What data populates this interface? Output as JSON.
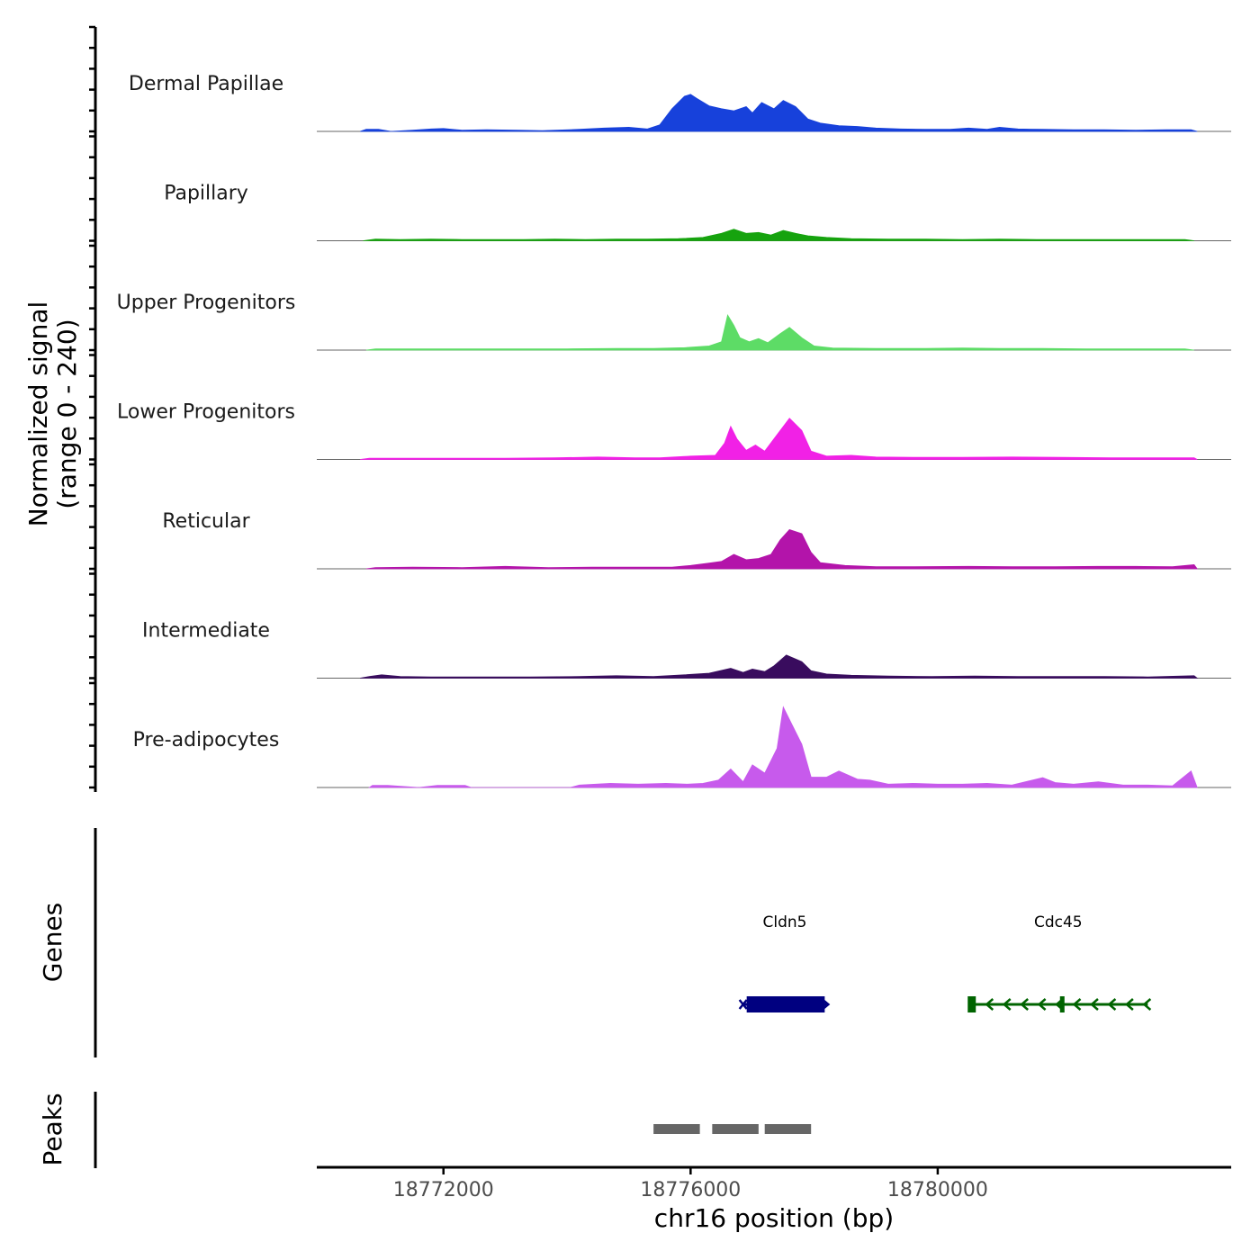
{
  "chart_data": {
    "type": "area",
    "ylabel_line1": "Normalized signal",
    "ylabel_line2": "(range 0 - 240)",
    "ylim": [
      0,
      240
    ],
    "xlabel": "chr16 position (bp)",
    "xlim": [
      18769950,
      18784750
    ],
    "x_ticks": [
      18772000,
      18776000,
      18780000
    ],
    "x_tick_labels": [
      "18772000",
      "18776000",
      "18780000"
    ],
    "track_panel_label_genes": "Genes",
    "track_panel_label_peaks": "Peaks",
    "series": [
      {
        "name": "Dermal Papillae",
        "color": "#1741db",
        "points": [
          [
            18770650,
            0
          ],
          [
            18770750,
            5
          ],
          [
            18770950,
            5
          ],
          [
            18771150,
            0
          ],
          [
            18771500,
            3
          ],
          [
            18771800,
            6
          ],
          [
            18772000,
            7
          ],
          [
            18772300,
            3
          ],
          [
            18772700,
            4
          ],
          [
            18773200,
            3
          ],
          [
            18773600,
            2
          ],
          [
            18774200,
            5
          ],
          [
            18774600,
            8
          ],
          [
            18775000,
            10
          ],
          [
            18775300,
            6
          ],
          [
            18775500,
            16
          ],
          [
            18775700,
            55
          ],
          [
            18775900,
            85
          ],
          [
            18776000,
            90
          ],
          [
            18776100,
            80
          ],
          [
            18776300,
            62
          ],
          [
            18776500,
            55
          ],
          [
            18776700,
            50
          ],
          [
            18776900,
            60
          ],
          [
            18777000,
            45
          ],
          [
            18777150,
            70
          ],
          [
            18777350,
            55
          ],
          [
            18777500,
            75
          ],
          [
            18777700,
            60
          ],
          [
            18777900,
            30
          ],
          [
            18778100,
            20
          ],
          [
            18778400,
            14
          ],
          [
            18778700,
            12
          ],
          [
            18779000,
            8
          ],
          [
            18779400,
            6
          ],
          [
            18779800,
            5
          ],
          [
            18780200,
            5
          ],
          [
            18780500,
            8
          ],
          [
            18780800,
            5
          ],
          [
            18781000,
            10
          ],
          [
            18781300,
            6
          ],
          [
            18781700,
            5
          ],
          [
            18782200,
            4
          ],
          [
            18782700,
            4
          ],
          [
            18783200,
            3
          ],
          [
            18783700,
            4
          ],
          [
            18784100,
            4
          ],
          [
            18784200,
            0
          ]
        ]
      },
      {
        "name": "Papillary",
        "color": "#16a30e",
        "points": [
          [
            18770700,
            0
          ],
          [
            18770900,
            4
          ],
          [
            18771300,
            3
          ],
          [
            18771800,
            4
          ],
          [
            18772300,
            3
          ],
          [
            18772800,
            3
          ],
          [
            18773300,
            3
          ],
          [
            18773800,
            4
          ],
          [
            18774300,
            3
          ],
          [
            18774800,
            4
          ],
          [
            18775300,
            4
          ],
          [
            18775800,
            5
          ],
          [
            18776200,
            8
          ],
          [
            18776500,
            18
          ],
          [
            18776700,
            28
          ],
          [
            18776900,
            18
          ],
          [
            18777100,
            20
          ],
          [
            18777300,
            14
          ],
          [
            18777500,
            25
          ],
          [
            18777700,
            18
          ],
          [
            18777900,
            12
          ],
          [
            18778200,
            8
          ],
          [
            18778600,
            5
          ],
          [
            18779200,
            4
          ],
          [
            18779800,
            4
          ],
          [
            18780400,
            3
          ],
          [
            18781000,
            4
          ],
          [
            18781600,
            3
          ],
          [
            18782200,
            3
          ],
          [
            18782800,
            3
          ],
          [
            18783400,
            3
          ],
          [
            18784000,
            3
          ],
          [
            18784150,
            0
          ]
        ]
      },
      {
        "name": "Upper Progenitors",
        "color": "#5ddc66",
        "points": [
          [
            18770750,
            0
          ],
          [
            18770900,
            3
          ],
          [
            18771600,
            3
          ],
          [
            18772400,
            3
          ],
          [
            18773200,
            3
          ],
          [
            18774000,
            3
          ],
          [
            18774800,
            4
          ],
          [
            18775400,
            4
          ],
          [
            18775900,
            6
          ],
          [
            18776300,
            10
          ],
          [
            18776500,
            20
          ],
          [
            18776600,
            85
          ],
          [
            18776700,
            60
          ],
          [
            18776800,
            30
          ],
          [
            18776950,
            20
          ],
          [
            18777100,
            28
          ],
          [
            18777250,
            18
          ],
          [
            18777450,
            40
          ],
          [
            18777600,
            55
          ],
          [
            18777800,
            30
          ],
          [
            18778000,
            10
          ],
          [
            18778300,
            5
          ],
          [
            18779000,
            4
          ],
          [
            18779800,
            4
          ],
          [
            18780400,
            5
          ],
          [
            18781000,
            4
          ],
          [
            18781700,
            4
          ],
          [
            18782400,
            3
          ],
          [
            18783200,
            3
          ],
          [
            18784000,
            3
          ],
          [
            18784150,
            0
          ]
        ]
      },
      {
        "name": "Lower Progenitors",
        "color": "#f121e6",
        "points": [
          [
            18770650,
            0
          ],
          [
            18770800,
            3
          ],
          [
            18771400,
            3
          ],
          [
            18772200,
            3
          ],
          [
            18773000,
            3
          ],
          [
            18773800,
            4
          ],
          [
            18774500,
            6
          ],
          [
            18775100,
            4
          ],
          [
            18775500,
            4
          ],
          [
            18776000,
            8
          ],
          [
            18776400,
            10
          ],
          [
            18776550,
            40
          ],
          [
            18776650,
            80
          ],
          [
            18776750,
            50
          ],
          [
            18776900,
            22
          ],
          [
            18777050,
            35
          ],
          [
            18777200,
            20
          ],
          [
            18777400,
            60
          ],
          [
            18777600,
            100
          ],
          [
            18777800,
            70
          ],
          [
            18777950,
            20
          ],
          [
            18778200,
            8
          ],
          [
            18778600,
            10
          ],
          [
            18779000,
            6
          ],
          [
            18779600,
            5
          ],
          [
            18780400,
            5
          ],
          [
            18781200,
            6
          ],
          [
            18782000,
            5
          ],
          [
            18782800,
            4
          ],
          [
            18783500,
            4
          ],
          [
            18784150,
            4
          ],
          [
            18784200,
            0
          ]
        ]
      },
      {
        "name": "Reticular",
        "color": "#b314aa",
        "points": [
          [
            18770750,
            0
          ],
          [
            18770900,
            3
          ],
          [
            18771500,
            4
          ],
          [
            18772300,
            3
          ],
          [
            18773000,
            6
          ],
          [
            18773700,
            3
          ],
          [
            18774400,
            4
          ],
          [
            18775000,
            4
          ],
          [
            18775700,
            4
          ],
          [
            18776000,
            8
          ],
          [
            18776300,
            14
          ],
          [
            18776500,
            18
          ],
          [
            18776700,
            35
          ],
          [
            18776900,
            22
          ],
          [
            18777100,
            25
          ],
          [
            18777300,
            35
          ],
          [
            18777450,
            70
          ],
          [
            18777600,
            95
          ],
          [
            18777800,
            85
          ],
          [
            18777950,
            40
          ],
          [
            18778100,
            15
          ],
          [
            18778500,
            8
          ],
          [
            18779000,
            5
          ],
          [
            18779600,
            5
          ],
          [
            18780500,
            6
          ],
          [
            18781200,
            5
          ],
          [
            18781900,
            5
          ],
          [
            18782600,
            6
          ],
          [
            18783200,
            6
          ],
          [
            18783800,
            5
          ],
          [
            18784150,
            10
          ],
          [
            18784200,
            0
          ]
        ]
      },
      {
        "name": "Intermediate",
        "color": "#390c5e",
        "points": [
          [
            18770650,
            0
          ],
          [
            18770800,
            4
          ],
          [
            18771000,
            8
          ],
          [
            18771300,
            4
          ],
          [
            18771800,
            3
          ],
          [
            18772600,
            3
          ],
          [
            18773400,
            3
          ],
          [
            18774200,
            4
          ],
          [
            18774800,
            6
          ],
          [
            18775400,
            4
          ],
          [
            18775900,
            8
          ],
          [
            18776300,
            12
          ],
          [
            18776650,
            24
          ],
          [
            18776850,
            14
          ],
          [
            18777000,
            22
          ],
          [
            18777200,
            16
          ],
          [
            18777350,
            30
          ],
          [
            18777550,
            56
          ],
          [
            18777800,
            40
          ],
          [
            18777950,
            18
          ],
          [
            18778200,
            10
          ],
          [
            18778600,
            7
          ],
          [
            18779200,
            5
          ],
          [
            18779900,
            4
          ],
          [
            18780600,
            5
          ],
          [
            18781300,
            4
          ],
          [
            18782000,
            4
          ],
          [
            18782700,
            4
          ],
          [
            18783400,
            3
          ],
          [
            18784150,
            6
          ],
          [
            18784200,
            0
          ]
        ]
      },
      {
        "name": "Pre-adipocytes",
        "color": "#c75aec",
        "points": [
          [
            18770800,
            0
          ],
          [
            18770850,
            5
          ],
          [
            18771100,
            5
          ],
          [
            18771600,
            0
          ],
          [
            18771900,
            5
          ],
          [
            18772350,
            5
          ],
          [
            18772450,
            0
          ],
          [
            18774050,
            0
          ],
          [
            18774200,
            6
          ],
          [
            18774700,
            10
          ],
          [
            18775150,
            8
          ],
          [
            18775600,
            10
          ],
          [
            18775950,
            8
          ],
          [
            18776200,
            10
          ],
          [
            18776450,
            18
          ],
          [
            18776650,
            45
          ],
          [
            18776850,
            14
          ],
          [
            18777000,
            55
          ],
          [
            18777200,
            35
          ],
          [
            18777400,
            95
          ],
          [
            18777500,
            195
          ],
          [
            18777650,
            150
          ],
          [
            18777800,
            105
          ],
          [
            18777950,
            25
          ],
          [
            18778200,
            25
          ],
          [
            18778400,
            40
          ],
          [
            18778700,
            20
          ],
          [
            18778900,
            18
          ],
          [
            18779200,
            8
          ],
          [
            18779600,
            10
          ],
          [
            18780000,
            8
          ],
          [
            18780400,
            8
          ],
          [
            18780800,
            10
          ],
          [
            18781200,
            6
          ],
          [
            18781700,
            24
          ],
          [
            18781900,
            12
          ],
          [
            18782200,
            8
          ],
          [
            18782600,
            14
          ],
          [
            18783000,
            6
          ],
          [
            18783400,
            6
          ],
          [
            18783800,
            4
          ],
          [
            18784100,
            40
          ],
          [
            18784200,
            0
          ]
        ]
      }
    ],
    "genes": [
      {
        "name": "Cldn5",
        "start": 18776850,
        "end": 18778200,
        "strand": "+",
        "color": "#000080"
      },
      {
        "name": "Cdc45",
        "start": 18780500,
        "end": 18783400,
        "strand": "-",
        "color": "#006400"
      }
    ],
    "peaks": [
      {
        "start": 18775400,
        "end": 18776150
      },
      {
        "start": 18776350,
        "end": 18777100
      },
      {
        "start": 18777200,
        "end": 18777950
      }
    ]
  }
}
